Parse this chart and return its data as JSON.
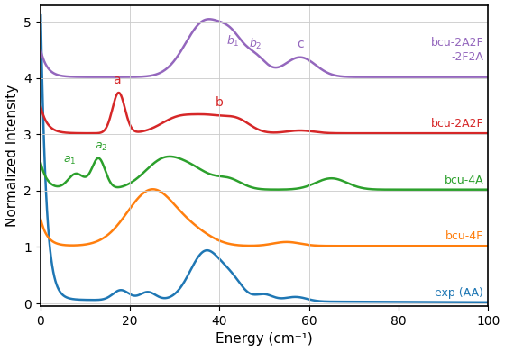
{
  "xlabel": "Energy (cm⁻¹)",
  "ylabel": "Normalized Intensity",
  "xlim": [
    0,
    100
  ],
  "ylim": [
    -0.05,
    5.3
  ],
  "yticks": [
    0,
    1,
    2,
    3,
    4,
    5
  ],
  "colors": {
    "exp": "#1f77b4",
    "bcu4F": "#ff7f0e",
    "bcu4A": "#2ca02c",
    "bcu2A2F": "#d62728",
    "bcu2A2F_2F2A": "#9467bd"
  },
  "offsets": {
    "exp": 0.0,
    "bcu4F": 1.0,
    "bcu4A": 2.0,
    "bcu2A2F": 3.0,
    "bcu2A2F_2F2A": 4.0
  },
  "labels": {
    "exp": "exp (AA)",
    "bcu4F": "bcu-4F",
    "bcu4A": "bcu-4A",
    "bcu2A2F": "bcu-2A2F",
    "bcu2A2F_2F2A": "bcu-2A2F\n-2F2A"
  },
  "background_color": "#ffffff",
  "grid_color": "#cccccc",
  "linewidth": 1.8
}
